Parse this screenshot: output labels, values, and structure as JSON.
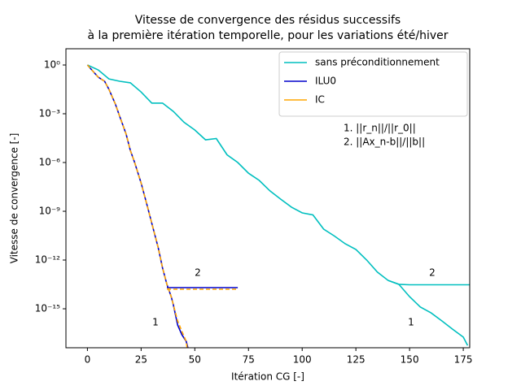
{
  "chart_data": {
    "type": "line",
    "title": "Vitesse de convergence des résidus successifs",
    "subtitle": "à la première itération temporelle, pour les variations été/hiver",
    "x_label": "Itération CG [-]",
    "y_label": "Vitesse de convergence [-]",
    "log_y": true,
    "legend": "upper right",
    "xlim": [
      -10,
      178
    ],
    "ylim": [
      4e-18,
      10
    ],
    "xticks": [
      0,
      25,
      50,
      75,
      100,
      125,
      150,
      175
    ],
    "yticks": [
      {
        "value": 1,
        "label": "10⁰"
      },
      {
        "value": 0.001,
        "label": "10⁻³"
      },
      {
        "value": 1e-06,
        "label": "10⁻⁶"
      },
      {
        "value": 1e-09,
        "label": "10⁻⁹"
      },
      {
        "value": 1e-12,
        "label": "10⁻¹²"
      },
      {
        "value": 1e-15,
        "label": "10⁻¹⁵"
      }
    ],
    "annotations": [
      "1. ||r_n||/||r_0||",
      "2. ||Ax_n-b||/||b||",
      "2",
      "1",
      "2",
      "1"
    ],
    "series": [
      {
        "name": "sans préconditionnement",
        "color": "#00bfbf",
        "linestyle": "solid",
        "x": [
          0,
          5,
          10,
          15,
          20,
          25,
          30,
          35,
          40,
          45,
          50,
          55,
          60,
          65,
          70,
          75,
          80,
          85,
          90,
          95,
          100,
          105,
          110,
          115,
          120,
          125,
          130,
          135,
          140,
          145,
          150,
          155,
          160,
          165,
          170,
          175,
          177
        ],
        "values": [
          1,
          0.5,
          0.14,
          0.1,
          0.08,
          0.022,
          0.0045,
          0.0045,
          0.0014,
          0.0003,
          0.0001,
          2.5e-05,
          3e-05,
          3e-06,
          1e-06,
          2.2e-07,
          8e-08,
          1.8e-08,
          5.6e-09,
          1.8e-09,
          8e-10,
          6e-10,
          8e-11,
          3e-11,
          1e-11,
          4.5e-12,
          1e-12,
          1.8e-13,
          5.6e-14,
          3.2e-14,
          5.6e-15,
          1.3e-15,
          5.6e-16,
          1.8e-16,
          5.6e-17,
          1.8e-17,
          5.6e-18
        ]
      },
      {
        "color": "#00bfbf",
        "linestyle": "solid",
        "x": [
          140,
          145,
          150,
          160,
          170,
          178
        ],
        "values": [
          5.6e-14,
          3.2e-14,
          3e-14,
          3e-14,
          3e-14,
          3e-14
        ]
      },
      {
        "name": "ILU0",
        "color": "#0000cc",
        "linestyle": "solid",
        "x": [
          0,
          2,
          5,
          8,
          10,
          13,
          15,
          18,
          20,
          22,
          25,
          28,
          30,
          33,
          35,
          37,
          39,
          40,
          42,
          44,
          46,
          48
        ],
        "values": [
          1,
          0.5,
          0.18,
          0.1,
          0.032,
          0.004,
          0.0007,
          5.6e-05,
          5.6e-06,
          1e-06,
          5.6e-08,
          1.8e-09,
          1.8e-10,
          5.6e-12,
          3.2e-13,
          3.2e-14,
          5.6e-15,
          1.8e-15,
          1e-16,
          2.5e-17,
          1e-17,
          1e-18
        ]
      },
      {
        "color": "#0000cc",
        "linestyle": "solid",
        "x": [
          37,
          45,
          55,
          70
        ],
        "values": [
          2e-14,
          2e-14,
          2e-14,
          2e-14
        ]
      },
      {
        "name": "IC",
        "color": "#ffa500",
        "linestyle": "dashed",
        "x": [
          0,
          2,
          5,
          8,
          10,
          13,
          15,
          18,
          20,
          22,
          25,
          28,
          30,
          33,
          35,
          37,
          39,
          40,
          42,
          44,
          46,
          47
        ],
        "values": [
          1,
          0.5,
          0.18,
          0.1,
          0.032,
          0.004,
          0.0007,
          5.6e-05,
          5.6e-06,
          1e-06,
          5.6e-08,
          1.8e-09,
          1.8e-10,
          5.6e-12,
          3.2e-13,
          3.2e-14,
          5.6e-15,
          1.8e-15,
          1.8e-16,
          4e-17,
          1e-17,
          1e-18
        ]
      },
      {
        "color": "#ffa500",
        "linestyle": "dashed",
        "x": [
          37,
          45,
          55,
          70
        ],
        "values": [
          1.6e-14,
          1.6e-14,
          1.6e-14,
          1.6e-14
        ]
      }
    ]
  }
}
